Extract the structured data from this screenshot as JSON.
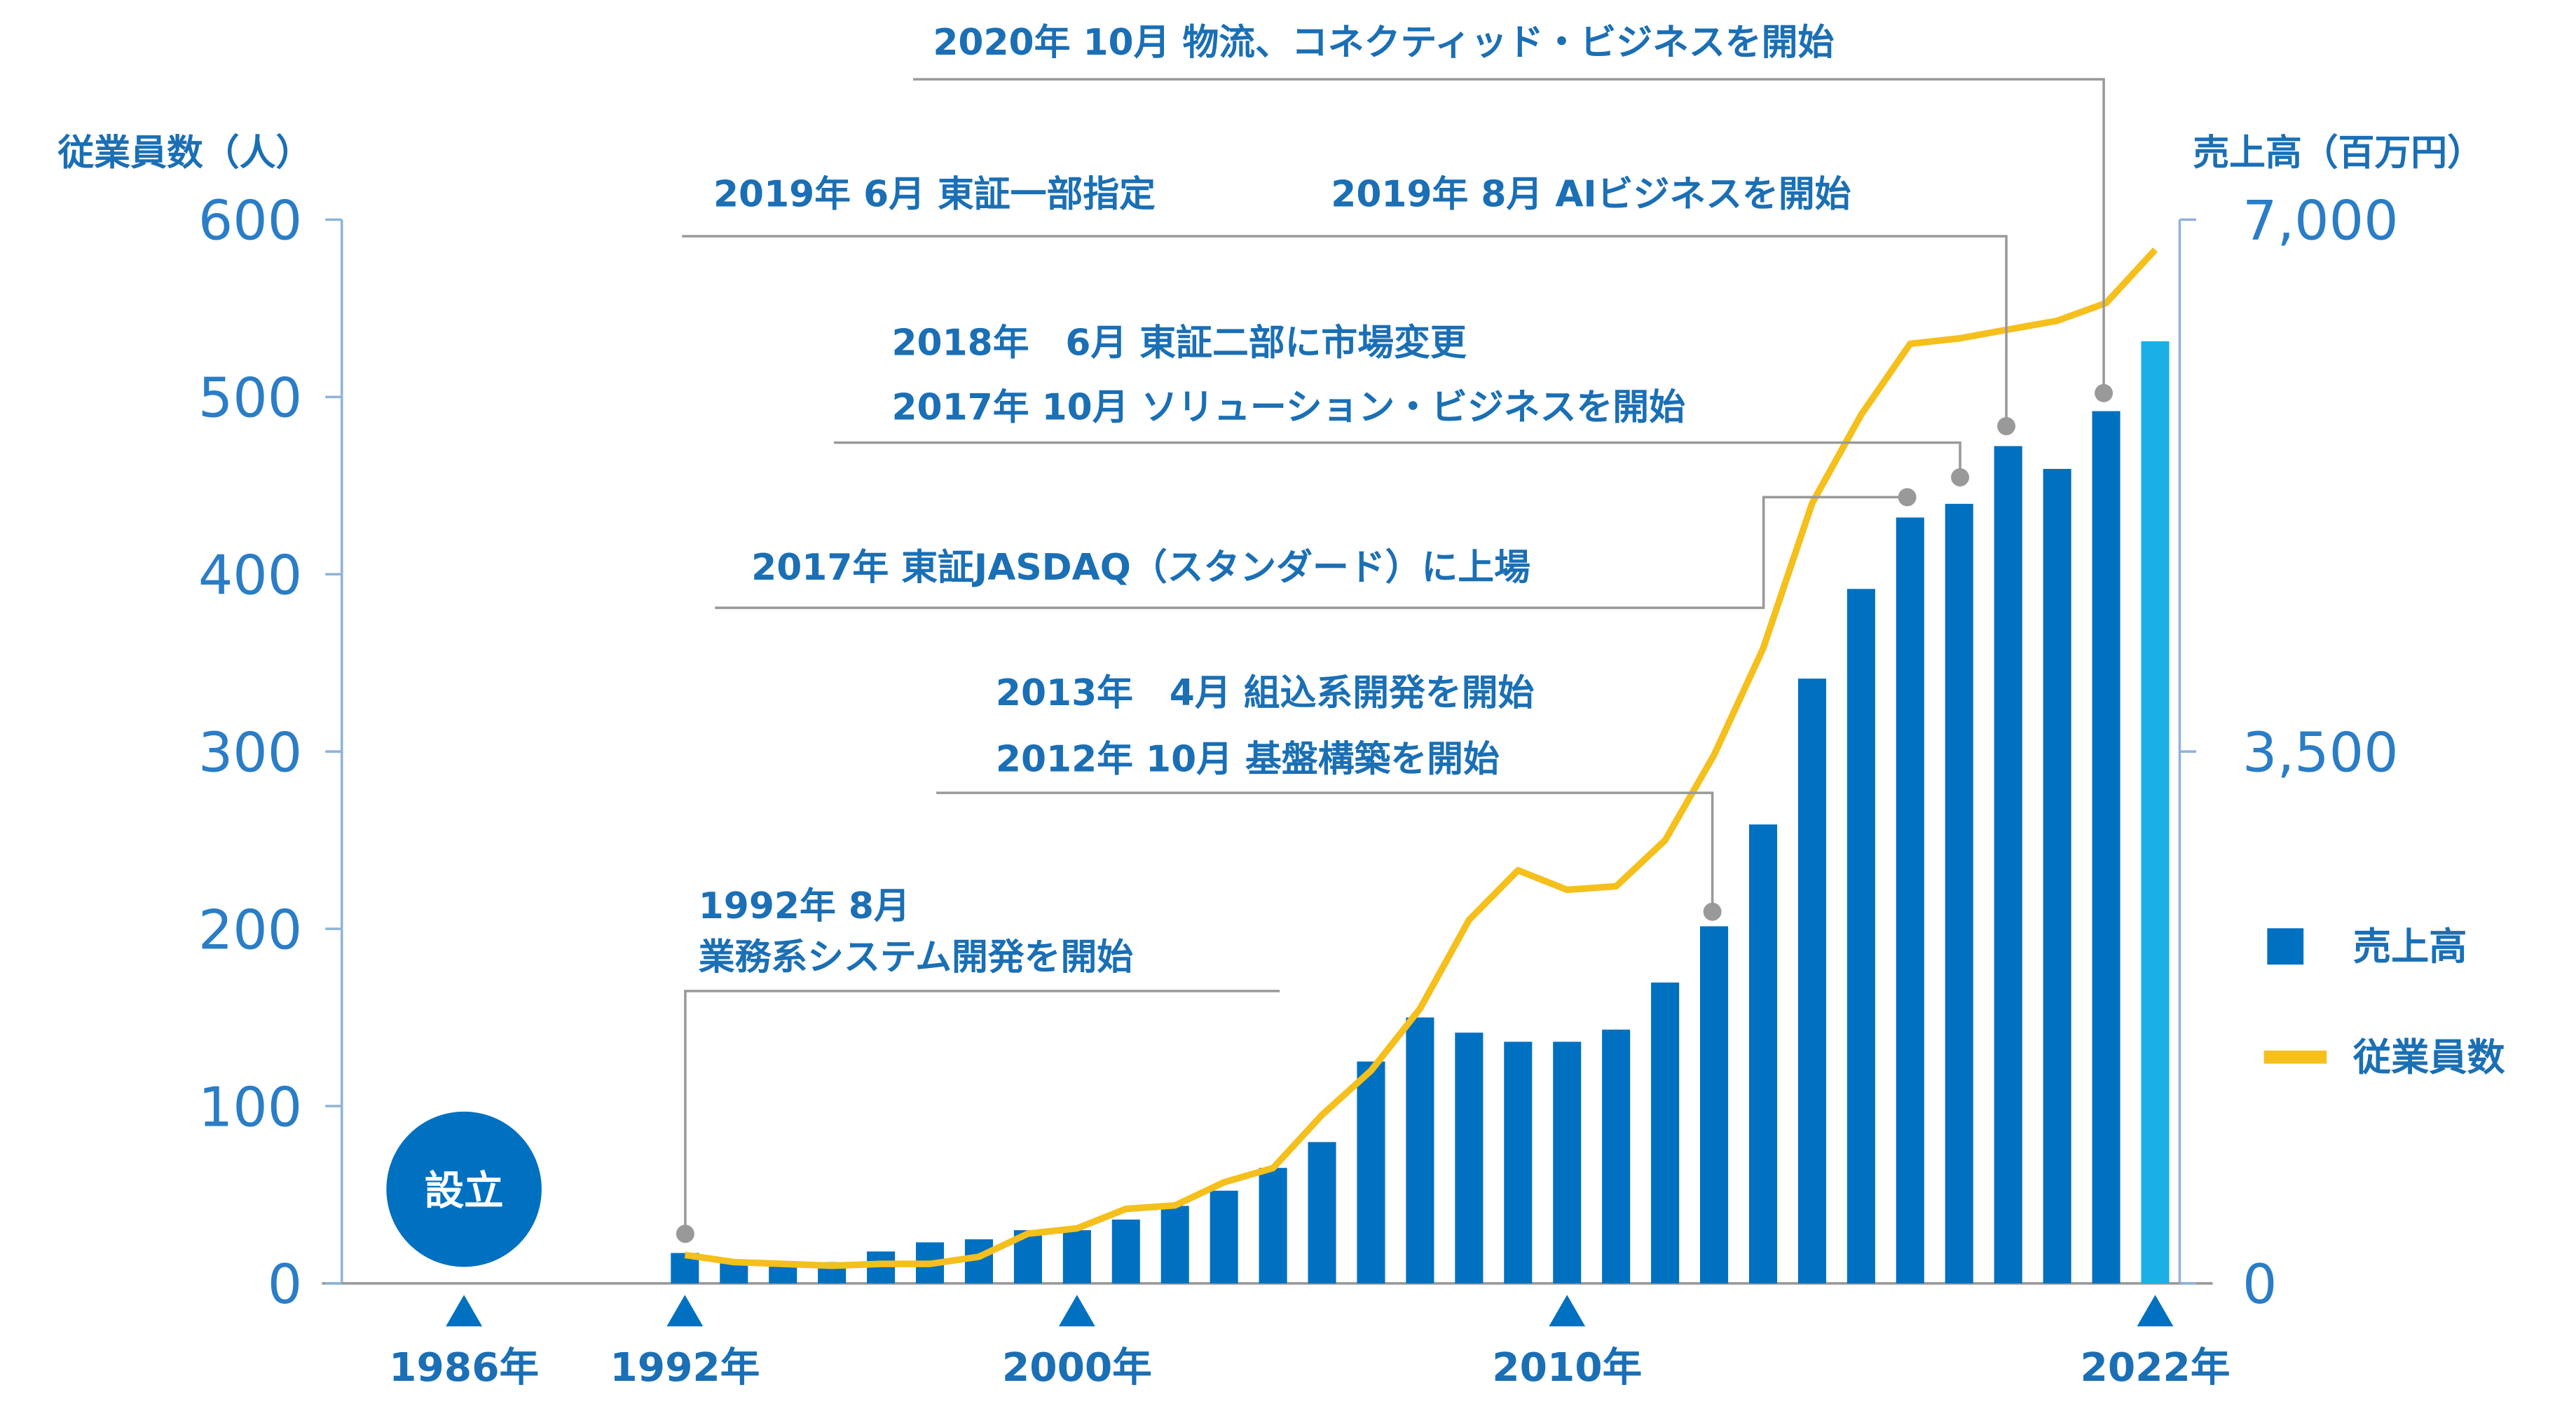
{
  "chart_data": {
    "type": "bar_line",
    "y_label": "従業員数（人）",
    "y2_label": "売上高（百万円）",
    "x": [
      1992,
      1993,
      1994,
      1995,
      1996,
      1997,
      1998,
      1999,
      2000,
      2001,
      2002,
      2003,
      2004,
      2005,
      2006,
      2007,
      2008,
      2009,
      2010,
      2011,
      2012,
      2013,
      2014,
      2015,
      2016,
      2017,
      2018,
      2019,
      2020,
      2021,
      2022
    ],
    "xlim": [
      1985,
      2022.5
    ],
    "xticks": [
      {
        "value": 1992,
        "label": "1992年"
      },
      {
        "value": 2000,
        "label": "2000年"
      },
      {
        "value": 2010,
        "label": "2010年"
      },
      {
        "value": 2022,
        "label": "2022年"
      }
    ],
    "founding": {
      "label": "設立",
      "year_label": "1986年"
    },
    "ylim": [
      0,
      600
    ],
    "yticks": [
      0,
      100,
      200,
      300,
      400,
      500,
      600
    ],
    "y2lim": [
      0,
      7000
    ],
    "y2ticks": [
      0,
      {
        "value": 3500,
        "label": "3,500"
      },
      {
        "value": 7000,
        "label": "7,000"
      }
    ],
    "series": [
      {
        "name": "売上高",
        "type": "bar",
        "axis": "y2",
        "color": "#0070c0",
        "colors": [
          "#0070c0",
          "#0070c0",
          "#0070c0",
          "#0070c0",
          "#0070c0",
          "#0070c0",
          "#0070c0",
          "#0070c0",
          "#0070c0",
          "#0070c0",
          "#0070c0",
          "#0070c0",
          "#0070c0",
          "#0070c0",
          "#0070c0",
          "#0070c0",
          "#0070c0",
          "#0070c0",
          "#0070c0",
          "#0070c0",
          "#0070c0",
          "#0070c0",
          "#0070c0",
          "#0070c0",
          "#0070c0",
          "#0070c0",
          "#0070c0",
          "#0070c0",
          "#0070c0",
          "#0070c0",
          "#1ab0e6"
        ],
        "values": [
          200,
          140,
          130,
          140,
          210,
          270,
          290,
          350,
          350,
          420,
          510,
          610,
          760,
          930,
          1460,
          1750,
          1650,
          1590,
          1590,
          1670,
          1980,
          2350,
          3020,
          3980,
          4570,
          5040,
          5130,
          5510,
          5360,
          5740,
          6200
        ]
      },
      {
        "name": "従業員数",
        "type": "line",
        "axis": "y",
        "color": "#f5bf1c",
        "values": [
          16,
          12,
          11,
          10,
          11,
          11,
          15,
          28,
          31,
          42,
          44,
          57,
          65,
          95,
          120,
          155,
          205,
          233,
          222,
          224,
          250,
          298,
          358,
          440,
          490,
          530,
          533,
          538,
          543,
          553,
          583
        ]
      }
    ],
    "annotations": [
      {
        "year": 1992,
        "lines": [
          "1992年 8月",
          "業務系システム開発を開始"
        ]
      },
      {
        "year": 2012,
        "lines": [
          "2013年　4月  組込系開発を開始",
          "2012年 10月  基盤構築を開始"
        ]
      },
      {
        "year": 2016,
        "lines": [
          "2017年  東証JASDAQ（スタンダード）に上場"
        ]
      },
      {
        "year": 2017,
        "lines": [
          "2018年　6月  東証二部に市場変更",
          "2017年 10月  ソリューション・ビジネスを開始"
        ]
      },
      {
        "year": 2018,
        "lines": [
          "2019年 6月  東証一部指定"
        ]
      },
      {
        "year": 2018,
        "lines": [
          "2019年 8月  AIビジネスを開始"
        ]
      },
      {
        "year": 2020,
        "lines": [
          "2020年 10月  物流、コネクティッド・ビジネスを開始"
        ]
      }
    ]
  }
}
